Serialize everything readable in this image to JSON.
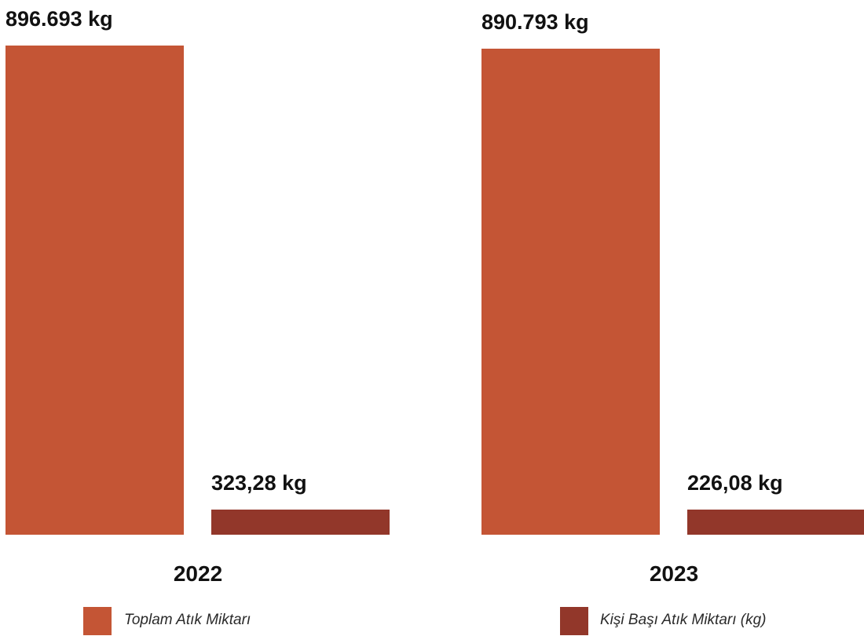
{
  "chart_data": {
    "type": "bar",
    "title": "",
    "xlabel": "",
    "ylabel": "",
    "categories": [
      "2022",
      "2023"
    ],
    "series": [
      {
        "name": "Toplam Atık Miktarı",
        "color": "#C45535",
        "values": [
          896693,
          890793
        ],
        "labels": [
          "896.693 kg",
          "890.793 kg"
        ]
      },
      {
        "name": "Kişi Başı Atık Miktarı (kg)",
        "color": "#92372A",
        "values": [
          323.28,
          226.08
        ],
        "labels": [
          "323,28 kg",
          "226,08 kg"
        ]
      }
    ],
    "legend_position": "bottom",
    "grid": false
  }
}
